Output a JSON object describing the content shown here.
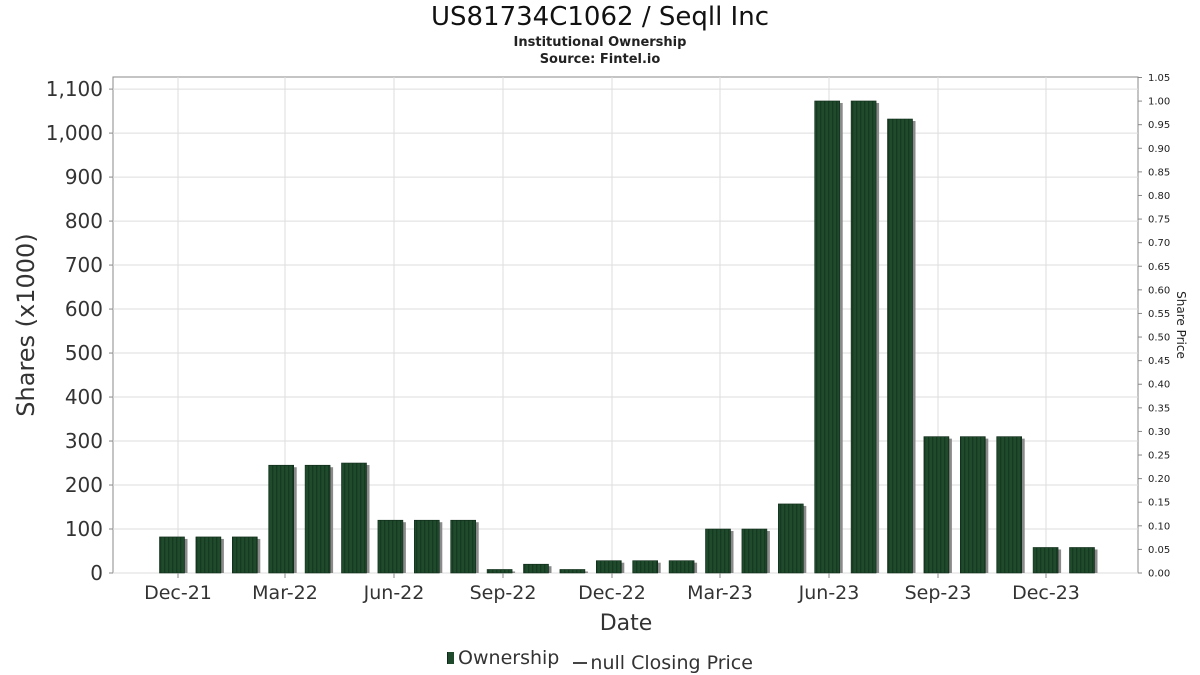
{
  "header": {
    "title": "US81734C1062 / Seqll Inc",
    "subtitle": "Institutional Ownership",
    "source": "Source: Fintel.io"
  },
  "legend": {
    "ownership": "Ownership",
    "closing_price": "null Closing Price"
  },
  "colors": {
    "bar": "#1f4a2c",
    "bar_shadow": "#8a8a8a",
    "grid": "#dddddd",
    "axis": "#888888"
  },
  "chart_data": {
    "type": "bar",
    "title": "US81734C1062 / Seqll Inc",
    "subtitle": "Institutional Ownership",
    "xlabel": "Date",
    "ylabel": "Shares (x1000)",
    "y2label": "Share Price",
    "ylim": [
      0,
      1100
    ],
    "y2lim": [
      0,
      1.05
    ],
    "yticks": [
      0,
      100,
      200,
      300,
      400,
      500,
      600,
      700,
      800,
      900,
      1000,
      1100
    ],
    "ytick_labels": [
      "0",
      "100",
      "200",
      "300",
      "400",
      "500",
      "600",
      "700",
      "800",
      "900",
      "1,000",
      "1,100"
    ],
    "y2ticks": [
      0,
      0.05,
      0.1,
      0.15,
      0.2,
      0.25,
      0.3,
      0.35,
      0.4,
      0.45,
      0.5,
      0.55,
      0.6,
      0.65,
      0.7,
      0.75,
      0.8,
      0.85,
      0.9,
      0.95,
      1.0,
      1.05
    ],
    "y2tick_labels": [
      "0.00",
      "0.05",
      "0.10",
      "0.15",
      "0.20",
      "0.25",
      "0.30",
      "0.35",
      "0.40",
      "0.45",
      "0.50",
      "0.55",
      "0.60",
      "0.65",
      "0.70",
      "0.75",
      "0.80",
      "0.85",
      "0.90",
      "0.95",
      "1.00",
      "1.05"
    ],
    "xticks": [
      "Dec-21",
      "Mar-22",
      "Jun-22",
      "Sep-22",
      "Dec-22",
      "Mar-23",
      "Jun-23",
      "Sep-23",
      "Dec-23"
    ],
    "grid": true,
    "legend_position": "bottom",
    "series": [
      {
        "name": "Ownership",
        "values": [
          82,
          82,
          82,
          245,
          245,
          250,
          120,
          120,
          120,
          8,
          20,
          8,
          28,
          28,
          28,
          100,
          100,
          157,
          1073,
          1073,
          1032,
          310,
          310,
          310,
          58,
          58
        ]
      }
    ]
  }
}
